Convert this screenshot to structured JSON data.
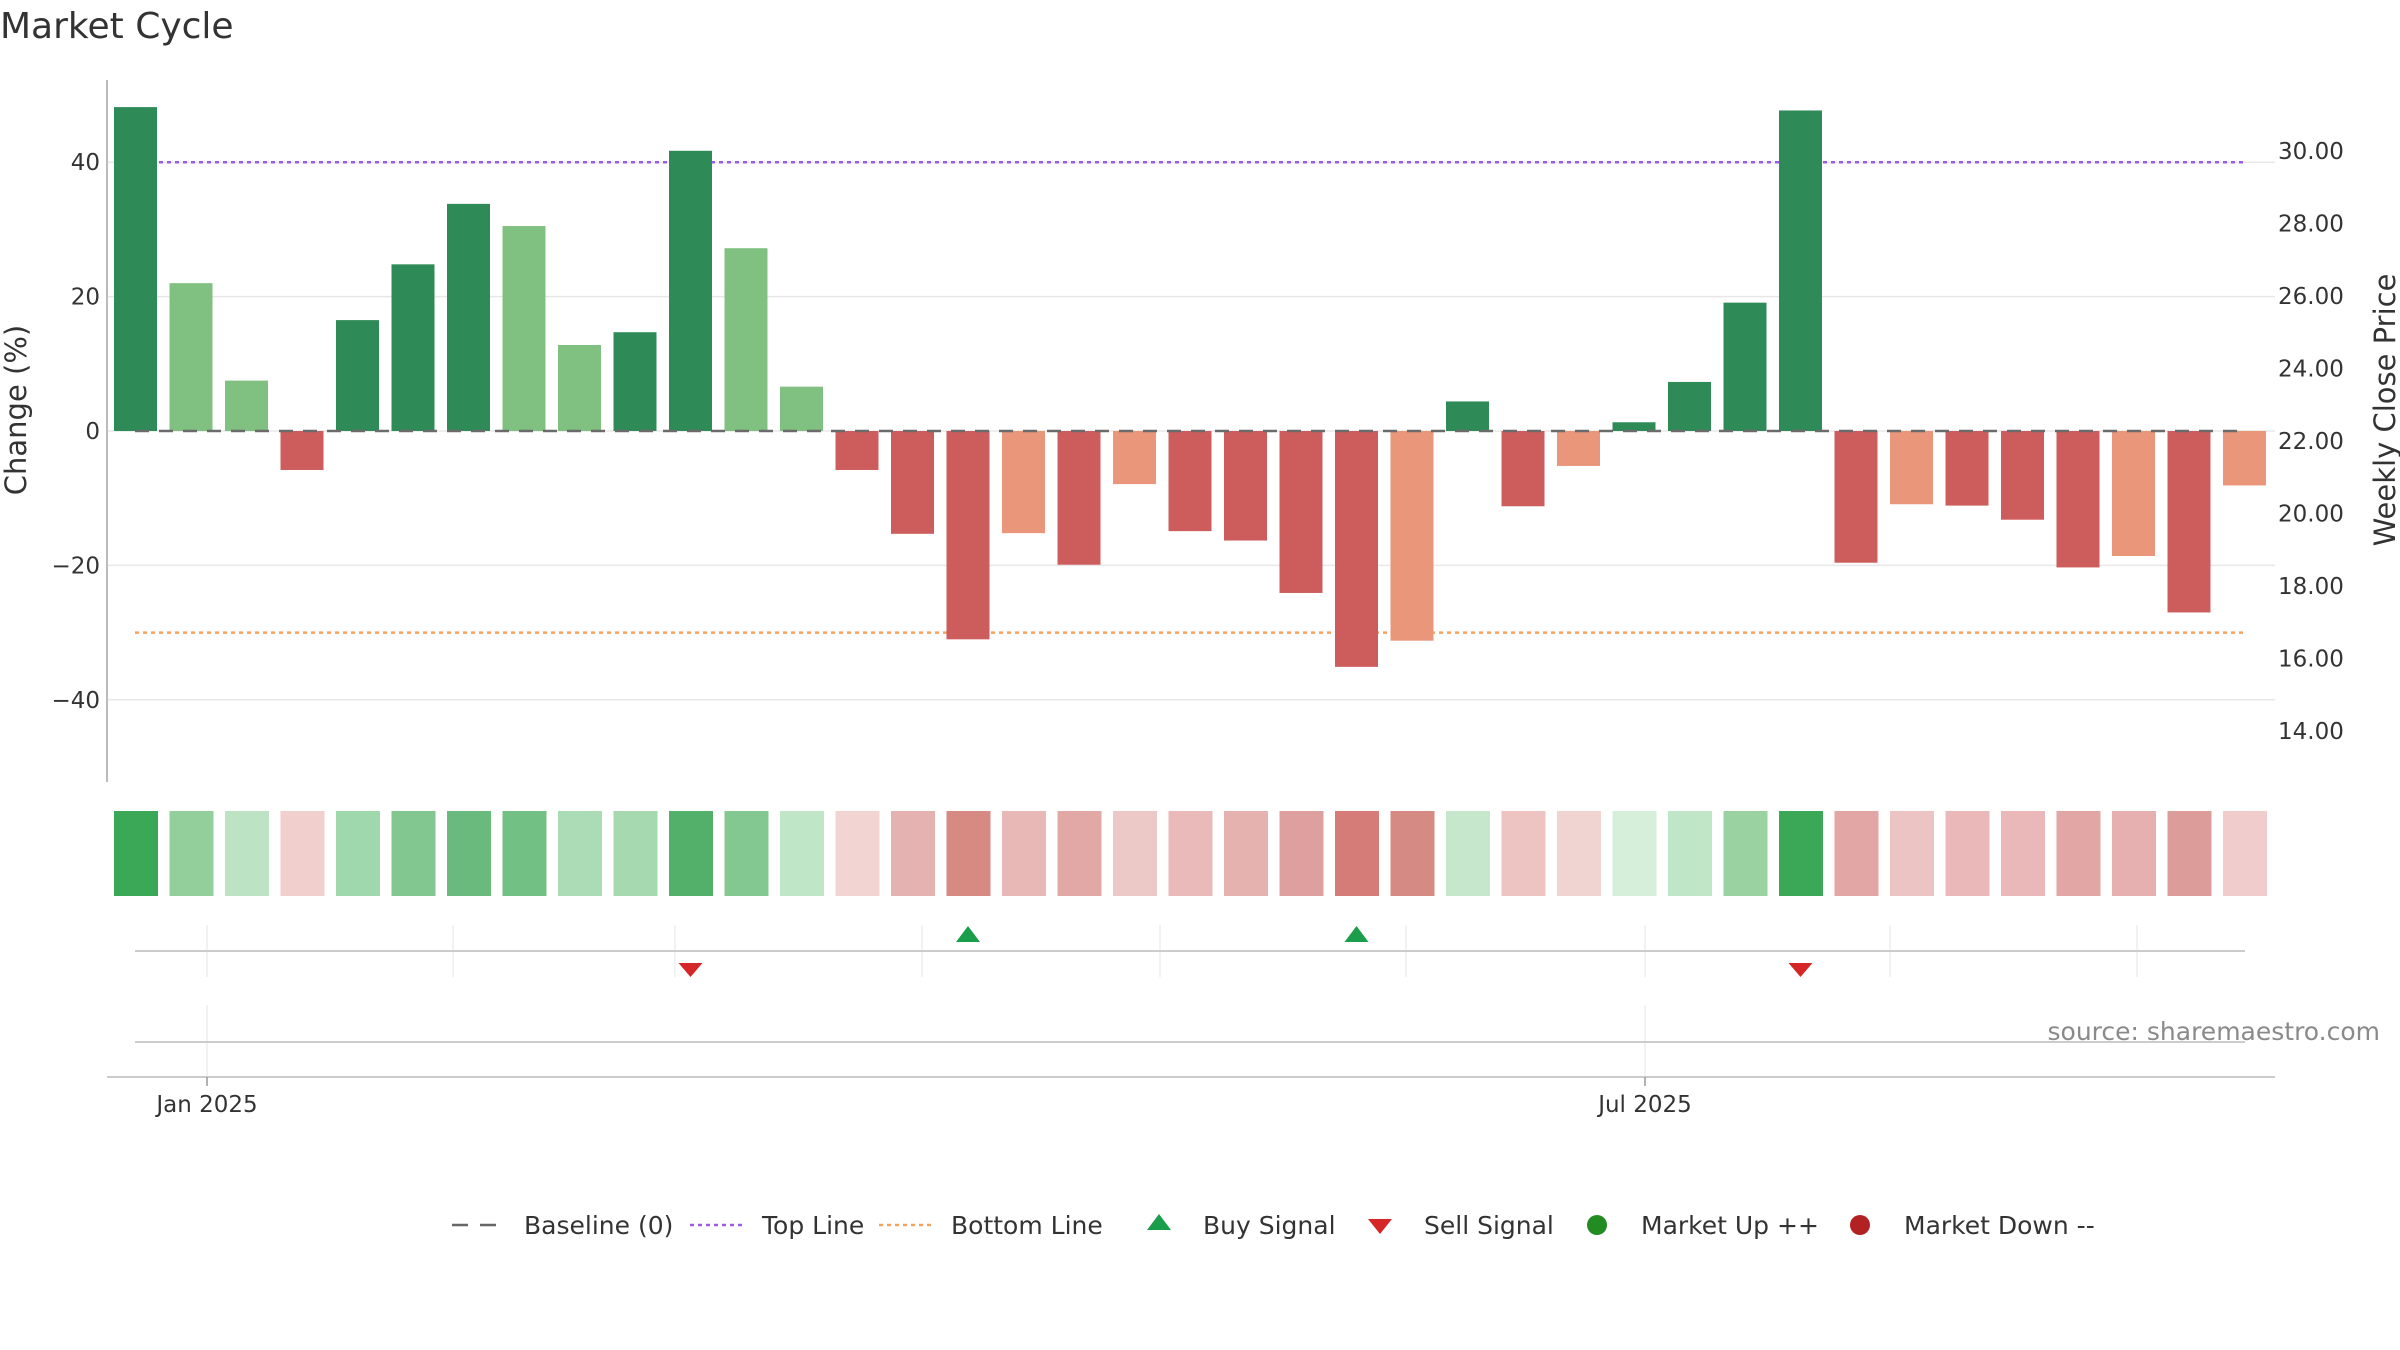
{
  "chart_data": {
    "type": "bar",
    "title": "Market Cycle",
    "ylabel": "Change (%)",
    "y2label": "Weekly Close Price",
    "ylim": [
      -52,
      52
    ],
    "y_ticks": [
      40,
      20,
      0,
      -20,
      -40
    ],
    "y_tick_labels": [
      "40",
      "20",
      "0",
      "−20",
      "−40"
    ],
    "y2_ticks": [
      30,
      28,
      26,
      24,
      22,
      20,
      18,
      16,
      14
    ],
    "y2_tick_labels": [
      "30.00",
      "28.00",
      "26.00",
      "24.00",
      "22.00",
      "20.00",
      "18.00",
      "16.00",
      "14.00"
    ],
    "x_tick_labels": [
      "Jan 2025",
      "Jul 2025"
    ],
    "grid": true,
    "top_line": 40,
    "bottom_line": -30,
    "baseline": 0,
    "bars": [
      {
        "value": 48.2,
        "color": "#2e8b57"
      },
      {
        "value": 22.0,
        "color": "#80c080"
      },
      {
        "value": 7.5,
        "color": "#80c080"
      },
      {
        "value": -5.8,
        "color": "#cd5c5c"
      },
      {
        "value": 16.5,
        "color": "#2e8b57"
      },
      {
        "value": 24.8,
        "color": "#2e8b57"
      },
      {
        "value": 33.8,
        "color": "#2e8b57"
      },
      {
        "value": 30.5,
        "color": "#80c080"
      },
      {
        "value": 12.8,
        "color": "#80c080"
      },
      {
        "value": 14.7,
        "color": "#2e8b57"
      },
      {
        "value": 41.7,
        "color": "#2e8b57"
      },
      {
        "value": 27.2,
        "color": "#80c080"
      },
      {
        "value": 6.6,
        "color": "#80c080"
      },
      {
        "value": -5.8,
        "color": "#cd5c5c"
      },
      {
        "value": -15.3,
        "color": "#cd5c5c"
      },
      {
        "value": -31.0,
        "color": "#cd5c5c"
      },
      {
        "value": -15.2,
        "color": "#e9967a"
      },
      {
        "value": -19.9,
        "color": "#cd5c5c"
      },
      {
        "value": -7.9,
        "color": "#e9967a"
      },
      {
        "value": -14.9,
        "color": "#cd5c5c"
      },
      {
        "value": -16.3,
        "color": "#cd5c5c"
      },
      {
        "value": -24.1,
        "color": "#cd5c5c"
      },
      {
        "value": -35.1,
        "color": "#cd5c5c"
      },
      {
        "value": -31.2,
        "color": "#e9967a"
      },
      {
        "value": 4.4,
        "color": "#2e8b57"
      },
      {
        "value": -11.2,
        "color": "#cd5c5c"
      },
      {
        "value": -5.2,
        "color": "#e9967a"
      },
      {
        "value": 1.3,
        "color": "#2e8b57"
      },
      {
        "value": 7.3,
        "color": "#2e8b57"
      },
      {
        "value": 19.1,
        "color": "#2e8b57"
      },
      {
        "value": 47.7,
        "color": "#2e8b57"
      },
      {
        "value": -19.6,
        "color": "#cd5c5c"
      },
      {
        "value": -10.9,
        "color": "#e9967a"
      },
      {
        "value": -11.1,
        "color": "#cd5c5c"
      },
      {
        "value": -13.2,
        "color": "#cd5c5c"
      },
      {
        "value": -20.3,
        "color": "#cd5c5c"
      },
      {
        "value": -18.6,
        "color": "#e9967a"
      },
      {
        "value": -27.0,
        "color": "#cd5c5c"
      },
      {
        "value": -8.1,
        "color": "#e9967a"
      }
    ],
    "heat_strip": [
      "#3aa857",
      "#92cf9a",
      "#bce3c4",
      "#f0cfcd",
      "#a0d8ad",
      "#82c78f",
      "#6aba7d",
      "#72c083",
      "#acdcb5",
      "#a6d9b0",
      "#52b06a",
      "#82c890",
      "#c0e6c8",
      "#f2d4d2",
      "#e4b3b1",
      "#d68a82",
      "#e8b8b6",
      "#e2a8a6",
      "#ecc8c6",
      "#eababa",
      "#e6b2b0",
      "#dea09e",
      "#d67c78",
      "#d68a84",
      "#c6e7cc",
      "#eec4c2",
      "#f0d4d2",
      "#d6efda",
      "#c0e6c8",
      "#9ad2a2",
      "#3aa857",
      "#e2a6a4",
      "#ecc4c4",
      "#eab8b8",
      "#eab8b8",
      "#e2a6a4",
      "#e6b0b0",
      "#dc9c9a",
      "#f0cccc"
    ],
    "signals": [
      {
        "bar": 10,
        "type": "sell"
      },
      {
        "bar": 15,
        "type": "buy"
      },
      {
        "bar": 22,
        "type": "buy"
      },
      {
        "bar": 30,
        "type": "sell"
      }
    ],
    "legend": [
      {
        "label": "Baseline (0)",
        "marker": "dash",
        "color": "#666666"
      },
      {
        "label": "Top Line",
        "marker": "dotted",
        "color": "#9b5de5"
      },
      {
        "label": "Bottom Line",
        "marker": "dotted",
        "color": "#f4a460"
      },
      {
        "label": "Buy Signal",
        "marker": "triangle-up",
        "color": "#1b9e4b"
      },
      {
        "label": "Sell Signal",
        "marker": "triangle-down",
        "color": "#d62728"
      },
      {
        "label": "Market Up ++",
        "marker": "circle",
        "color": "#228b22"
      },
      {
        "label": "Market Down --",
        "marker": "circle",
        "color": "#b22222"
      }
    ],
    "legend_position": "bottom-center",
    "source": "source: sharemaestro.com"
  }
}
